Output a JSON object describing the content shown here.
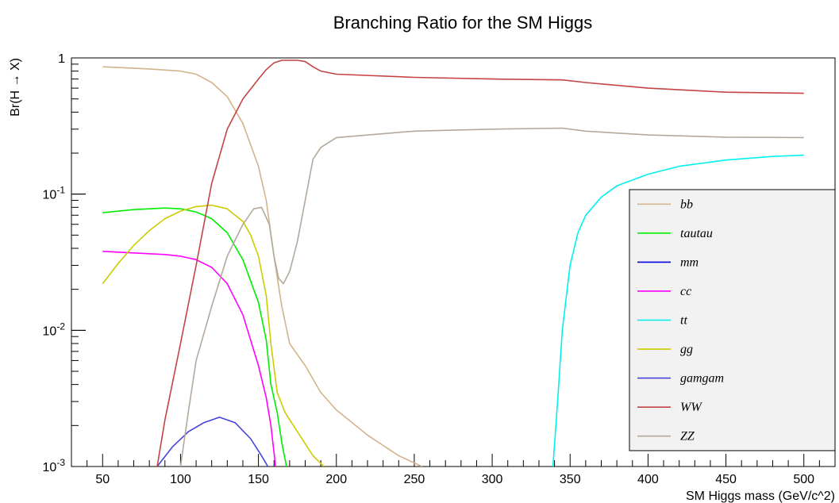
{
  "chart_data": {
    "type": "line",
    "title": "Branching Ratio for the SM Higgs",
    "xlabel": "SM Higgs mass (GeV/c^2)",
    "ylabel": "Br(H → X)",
    "xlim": [
      30,
      520
    ],
    "ylim": [
      0.001,
      1
    ],
    "yscale": "log",
    "xticks": [
      50,
      100,
      150,
      200,
      250,
      300,
      350,
      400,
      450,
      500
    ],
    "yticks": [
      {
        "value": 1,
        "base": "1",
        "exp": ""
      },
      {
        "value": 0.1,
        "base": "10",
        "exp": "-1"
      },
      {
        "value": 0.01,
        "base": "10",
        "exp": "-2"
      },
      {
        "value": 0.001,
        "base": "10",
        "exp": "-3"
      }
    ],
    "legend_position": "right",
    "series": [
      {
        "name": "bb",
        "color": "#d2b48c",
        "points": [
          [
            50,
            0.86
          ],
          [
            60,
            0.85
          ],
          [
            80,
            0.83
          ],
          [
            100,
            0.8
          ],
          [
            110,
            0.76
          ],
          [
            120,
            0.66
          ],
          [
            130,
            0.52
          ],
          [
            140,
            0.33
          ],
          [
            150,
            0.16
          ],
          [
            155,
            0.09
          ],
          [
            160,
            0.035
          ],
          [
            165,
            0.015
          ],
          [
            170,
            0.008
          ],
          [
            180,
            0.0055
          ],
          [
            190,
            0.0035
          ],
          [
            200,
            0.0026
          ],
          [
            220,
            0.0017
          ],
          [
            240,
            0.0012
          ],
          [
            255,
            0.001
          ]
        ]
      },
      {
        "name": "tautau",
        "color": "#00ee00",
        "points": [
          [
            50,
            0.073
          ],
          [
            70,
            0.077
          ],
          [
            90,
            0.079
          ],
          [
            100,
            0.078
          ],
          [
            110,
            0.074
          ],
          [
            120,
            0.066
          ],
          [
            130,
            0.052
          ],
          [
            140,
            0.033
          ],
          [
            150,
            0.016
          ],
          [
            155,
            0.0085
          ],
          [
            158,
            0.004
          ],
          [
            162,
            0.0025
          ],
          [
            165,
            0.0015
          ],
          [
            168,
            0.001
          ]
        ]
      },
      {
        "name": "mm",
        "color": "#0000dd",
        "points": []
      },
      {
        "name": "cc",
        "color": "#ff00ff",
        "points": [
          [
            50,
            0.038
          ],
          [
            70,
            0.037
          ],
          [
            90,
            0.036
          ],
          [
            100,
            0.035
          ],
          [
            110,
            0.033
          ],
          [
            120,
            0.029
          ],
          [
            130,
            0.022
          ],
          [
            140,
            0.013
          ],
          [
            150,
            0.0055
          ],
          [
            155,
            0.0032
          ],
          [
            158,
            0.002
          ],
          [
            161,
            0.001
          ]
        ]
      },
      {
        "name": "tt",
        "color": "#00f0f0",
        "points": [
          [
            339,
            0.001
          ],
          [
            342,
            0.003
          ],
          [
            345,
            0.01
          ],
          [
            350,
            0.03
          ],
          [
            355,
            0.052
          ],
          [
            360,
            0.07
          ],
          [
            370,
            0.095
          ],
          [
            380,
            0.115
          ],
          [
            400,
            0.14
          ],
          [
            420,
            0.16
          ],
          [
            450,
            0.178
          ],
          [
            480,
            0.189
          ],
          [
            500,
            0.193
          ]
        ]
      },
      {
        "name": "gg",
        "color": "#cccc00",
        "points": [
          [
            50,
            0.022
          ],
          [
            60,
            0.031
          ],
          [
            70,
            0.042
          ],
          [
            80,
            0.054
          ],
          [
            90,
            0.066
          ],
          [
            100,
            0.075
          ],
          [
            110,
            0.081
          ],
          [
            120,
            0.083
          ],
          [
            130,
            0.078
          ],
          [
            140,
            0.063
          ],
          [
            145,
            0.05
          ],
          [
            150,
            0.035
          ],
          [
            155,
            0.018
          ],
          [
            158,
            0.008
          ],
          [
            162,
            0.0035
          ],
          [
            167,
            0.0025
          ],
          [
            175,
            0.0018
          ],
          [
            185,
            0.0012
          ],
          [
            192,
            0.001
          ]
        ]
      },
      {
        "name": "gamgam",
        "color": "#4444dd",
        "points": [
          [
            85,
            0.001
          ],
          [
            95,
            0.0014
          ],
          [
            105,
            0.0018
          ],
          [
            115,
            0.0021
          ],
          [
            125,
            0.0023
          ],
          [
            135,
            0.0021
          ],
          [
            145,
            0.0016
          ],
          [
            152,
            0.0012
          ],
          [
            156,
            0.001
          ]
        ]
      },
      {
        "name": "WW",
        "color": "#c44444",
        "points": [
          [
            85,
            0.001
          ],
          [
            90,
            0.0022
          ],
          [
            100,
            0.008
          ],
          [
            110,
            0.03
          ],
          [
            120,
            0.12
          ],
          [
            130,
            0.3
          ],
          [
            140,
            0.5
          ],
          [
            150,
            0.7
          ],
          [
            155,
            0.82
          ],
          [
            160,
            0.92
          ],
          [
            165,
            0.96
          ],
          [
            175,
            0.96
          ],
          [
            180,
            0.94
          ],
          [
            185,
            0.86
          ],
          [
            190,
            0.8
          ],
          [
            200,
            0.76
          ],
          [
            250,
            0.72
          ],
          [
            300,
            0.7
          ],
          [
            345,
            0.69
          ],
          [
            360,
            0.66
          ],
          [
            400,
            0.6
          ],
          [
            450,
            0.56
          ],
          [
            500,
            0.55
          ]
        ]
      },
      {
        "name": "ZZ",
        "color": "#b4a89c",
        "points": [
          [
            100,
            0.001
          ],
          [
            105,
            0.0025
          ],
          [
            110,
            0.006
          ],
          [
            120,
            0.015
          ],
          [
            130,
            0.035
          ],
          [
            140,
            0.06
          ],
          [
            147,
            0.078
          ],
          [
            152,
            0.08
          ],
          [
            157,
            0.06
          ],
          [
            160,
            0.035
          ],
          [
            163,
            0.024
          ],
          [
            166,
            0.022
          ],
          [
            170,
            0.027
          ],
          [
            175,
            0.045
          ],
          [
            180,
            0.09
          ],
          [
            185,
            0.18
          ],
          [
            190,
            0.22
          ],
          [
            200,
            0.26
          ],
          [
            250,
            0.29
          ],
          [
            300,
            0.3
          ],
          [
            345,
            0.305
          ],
          [
            360,
            0.29
          ],
          [
            400,
            0.272
          ],
          [
            450,
            0.262
          ],
          [
            500,
            0.26
          ]
        ]
      }
    ]
  }
}
